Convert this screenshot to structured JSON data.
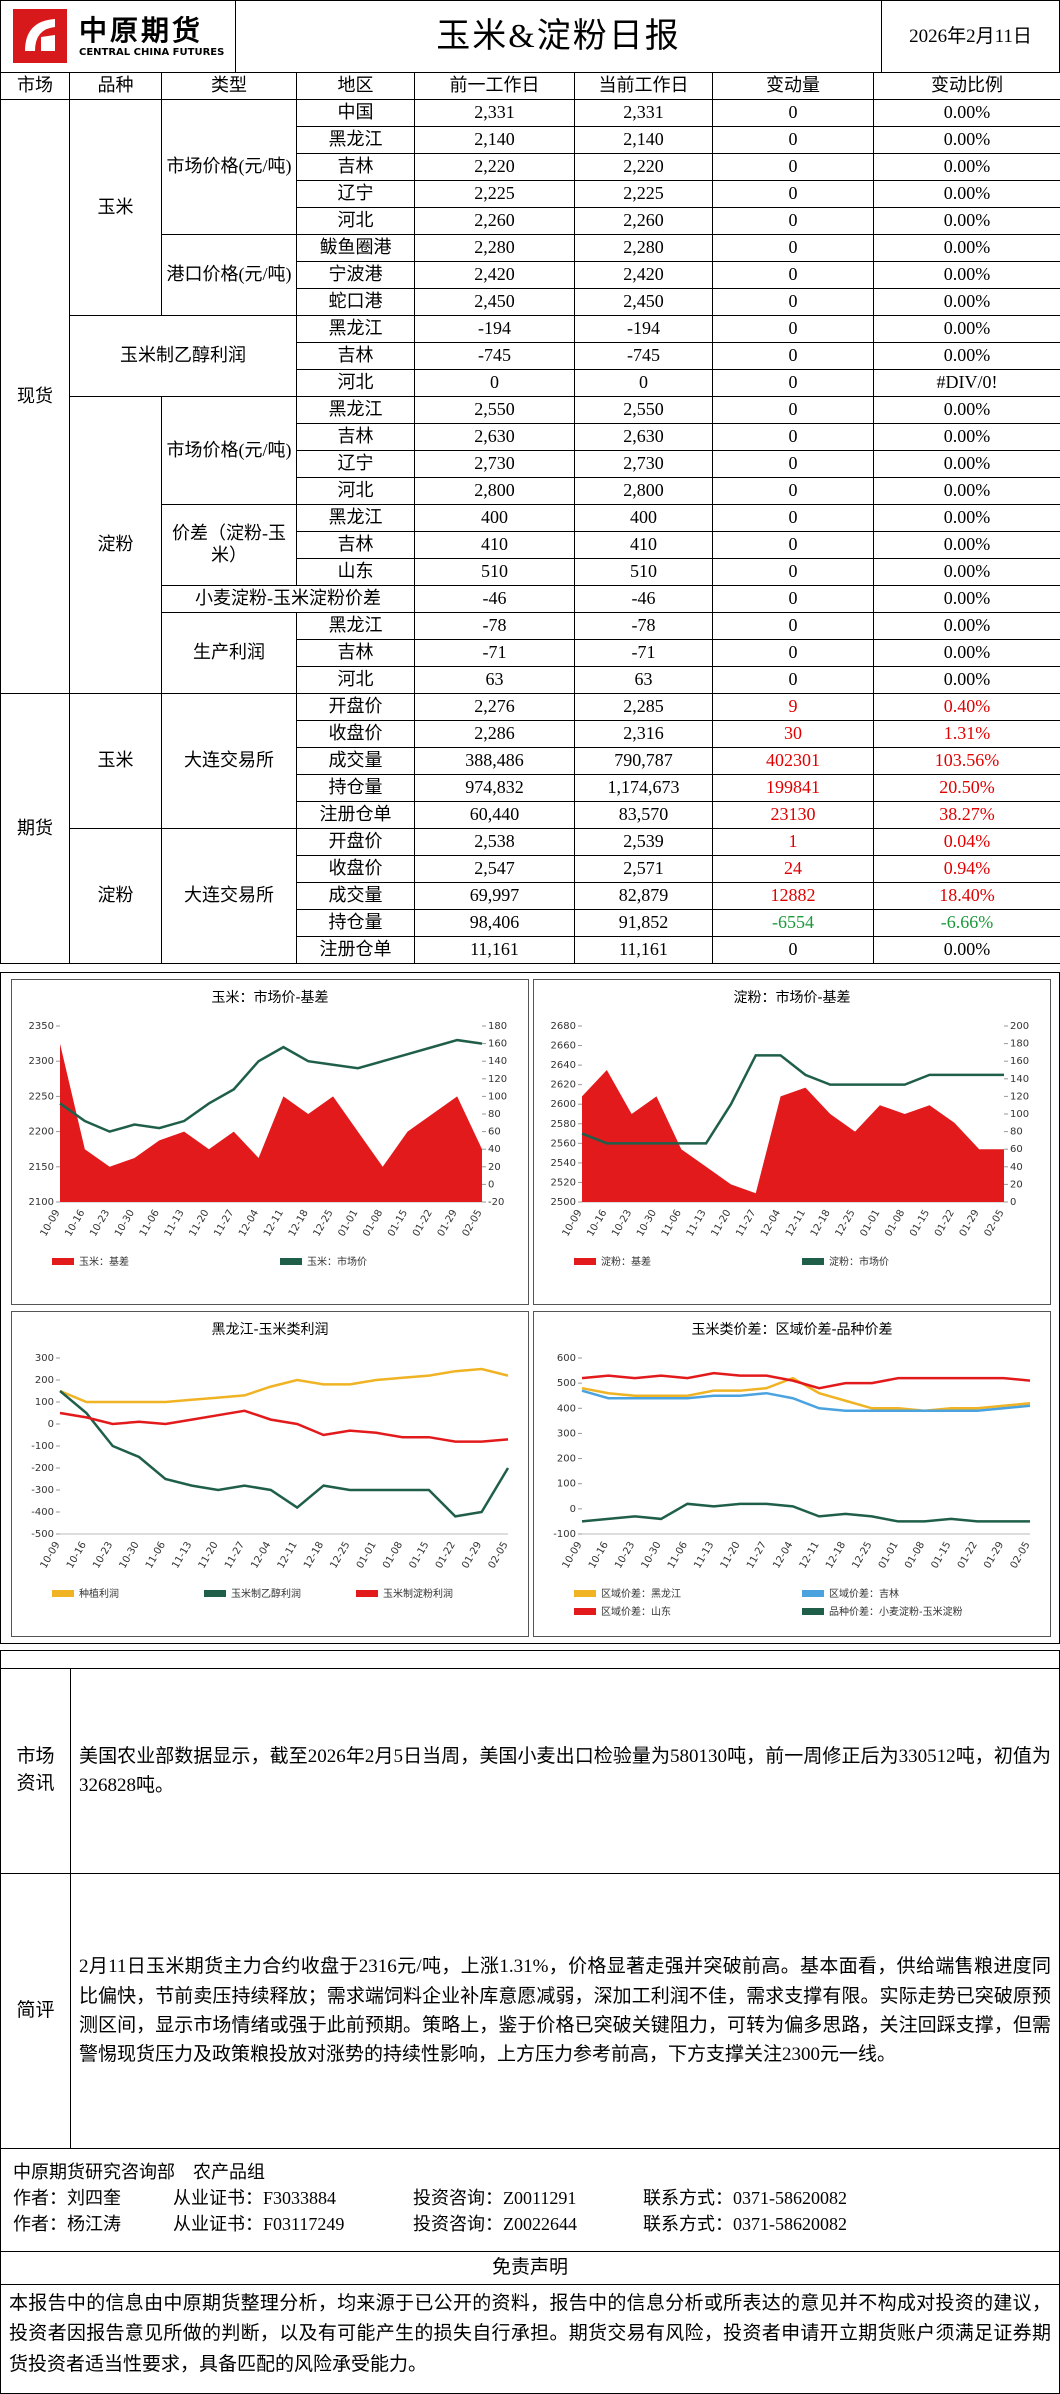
{
  "header": {
    "logo_cn": "中原期货",
    "logo_en": "CENTRAL CHINA FUTURES",
    "title": "玉米&淀粉日报",
    "date": "2026年2月11日"
  },
  "table": {
    "columns": [
      "市场",
      "品种",
      "类型",
      "地区",
      "前一工作日",
      "当前工作日",
      "变动量",
      "变动比例"
    ],
    "markets": [
      {
        "label": "现货",
        "varieties": [
          {
            "label": "玉米",
            "types": [
              {
                "label": "市场价格(元/吨)",
                "rows": [
                  {
                    "region": "中国",
                    "prev": "2,331",
                    "curr": "2,331",
                    "change": "0",
                    "pct": "0.00%"
                  },
                  {
                    "region": "黑龙江",
                    "prev": "2,140",
                    "curr": "2,140",
                    "change": "0",
                    "pct": "0.00%"
                  },
                  {
                    "region": "吉林",
                    "prev": "2,220",
                    "curr": "2,220",
                    "change": "0",
                    "pct": "0.00%"
                  },
                  {
                    "region": "辽宁",
                    "prev": "2,225",
                    "curr": "2,225",
                    "change": "0",
                    "pct": "0.00%"
                  },
                  {
                    "region": "河北",
                    "prev": "2,260",
                    "curr": "2,260",
                    "change": "0",
                    "pct": "0.00%"
                  }
                ]
              },
              {
                "label": "港口价格(元/吨)",
                "rows": [
                  {
                    "region": "鲅鱼圈港",
                    "prev": "2,280",
                    "curr": "2,280",
                    "change": "0",
                    "pct": "0.00%"
                  },
                  {
                    "region": "宁波港",
                    "prev": "2,420",
                    "curr": "2,420",
                    "change": "0",
                    "pct": "0.00%"
                  },
                  {
                    "region": "蛇口港",
                    "prev": "2,450",
                    "curr": "2,450",
                    "change": "0",
                    "pct": "0.00%"
                  }
                ]
              }
            ]
          },
          {
            "label": "玉米制乙醇利润",
            "types": [
              {
                "label": null,
                "rows": [
                  {
                    "region": "黑龙江",
                    "prev": "-194",
                    "curr": "-194",
                    "change": "0",
                    "pct": "0.00%"
                  },
                  {
                    "region": "吉林",
                    "prev": "-745",
                    "curr": "-745",
                    "change": "0",
                    "pct": "0.00%"
                  },
                  {
                    "region": "河北",
                    "prev": "0",
                    "curr": "0",
                    "change": "0",
                    "pct": "#DIV/0!"
                  }
                ]
              }
            ]
          },
          {
            "label": "淀粉",
            "types": [
              {
                "label": "市场价格(元/吨)",
                "rows": [
                  {
                    "region": "黑龙江",
                    "prev": "2,550",
                    "curr": "2,550",
                    "change": "0",
                    "pct": "0.00%"
                  },
                  {
                    "region": "吉林",
                    "prev": "2,630",
                    "curr": "2,630",
                    "change": "0",
                    "pct": "0.00%"
                  },
                  {
                    "region": "辽宁",
                    "prev": "2,730",
                    "curr": "2,730",
                    "change": "0",
                    "pct": "0.00%"
                  },
                  {
                    "region": "河北",
                    "prev": "2,800",
                    "curr": "2,800",
                    "change": "0",
                    "pct": "0.00%"
                  }
                ]
              },
              {
                "label": "价差（淀粉-玉米）",
                "rows": [
                  {
                    "region": "黑龙江",
                    "prev": "400",
                    "curr": "400",
                    "change": "0",
                    "pct": "0.00%"
                  },
                  {
                    "region": "吉林",
                    "prev": "410",
                    "curr": "410",
                    "change": "0",
                    "pct": "0.00%"
                  },
                  {
                    "region": "山东",
                    "prev": "510",
                    "curr": "510",
                    "change": "0",
                    "pct": "0.00%"
                  }
                ]
              },
              {
                "label": "小麦淀粉-玉米淀粉价差",
                "rows": [
                  {
                    "region": null,
                    "prev": "-46",
                    "curr": "-46",
                    "change": "0",
                    "pct": "0.00%"
                  }
                ]
              },
              {
                "label": "生产利润",
                "rows": [
                  {
                    "region": "黑龙江",
                    "prev": "-78",
                    "curr": "-78",
                    "change": "0",
                    "pct": "0.00%"
                  },
                  {
                    "region": "吉林",
                    "prev": "-71",
                    "curr": "-71",
                    "change": "0",
                    "pct": "0.00%"
                  },
                  {
                    "region": "河北",
                    "prev": "63",
                    "curr": "63",
                    "change": "0",
                    "pct": "0.00%"
                  }
                ]
              }
            ]
          }
        ]
      },
      {
        "label": "期货",
        "varieties": [
          {
            "label": "玉米",
            "types": [
              {
                "label": "大连交易所",
                "rows": [
                  {
                    "region": "开盘价",
                    "prev": "2,276",
                    "curr": "2,285",
                    "change": "9",
                    "pct": "0.40%"
                  },
                  {
                    "region": "收盘价",
                    "prev": "2,286",
                    "curr": "2,316",
                    "change": "30",
                    "pct": "1.31%"
                  },
                  {
                    "region": "成交量",
                    "prev": "388,486",
                    "curr": "790,787",
                    "change": "402301",
                    "pct": "103.56%"
                  },
                  {
                    "region": "持仓量",
                    "prev": "974,832",
                    "curr": "1,174,673",
                    "change": "199841",
                    "pct": "20.50%"
                  },
                  {
                    "region": "注册仓单",
                    "prev": "60,440",
                    "curr": "83,570",
                    "change": "23130",
                    "pct": "38.27%"
                  }
                ]
              }
            ]
          },
          {
            "label": "淀粉",
            "types": [
              {
                "label": "大连交易所",
                "rows": [
                  {
                    "region": "开盘价",
                    "prev": "2,538",
                    "curr": "2,539",
                    "change": "1",
                    "pct": "0.04%"
                  },
                  {
                    "region": "收盘价",
                    "prev": "2,547",
                    "curr": "2,571",
                    "change": "24",
                    "pct": "0.94%"
                  },
                  {
                    "region": "成交量",
                    "prev": "69,997",
                    "curr": "82,879",
                    "change": "12882",
                    "pct": "18.40%"
                  },
                  {
                    "region": "持仓量",
                    "prev": "98,406",
                    "curr": "91,852",
                    "change": "-6554",
                    "pct": "-6.66%"
                  },
                  {
                    "region": "注册仓单",
                    "prev": "11,161",
                    "curr": "11,161",
                    "change": "0",
                    "pct": "0.00%"
                  }
                ]
              }
            ]
          }
        ]
      }
    ]
  },
  "chart_data": [
    {
      "type": "line",
      "title": "玉米：市场价-基差",
      "x": [
        "10-09",
        "10-16",
        "10-23",
        "10-30",
        "11-06",
        "11-13",
        "11-20",
        "11-27",
        "12-04",
        "12-11",
        "12-18",
        "12-25",
        "01-01",
        "01-08",
        "01-15",
        "01-22",
        "01-29",
        "02-05"
      ],
      "ylim": [
        2100,
        2350
      ],
      "yticks": [
        2100,
        2150,
        2200,
        2250,
        2300,
        2350
      ],
      "y2lim": [
        -20,
        180
      ],
      "y2ticks": [
        -20,
        0,
        20,
        40,
        60,
        80,
        100,
        120,
        140,
        160,
        180
      ],
      "series": [
        {
          "name": "玉米：基差",
          "color": "#e31a1c",
          "type": "area",
          "axis": "y2",
          "values": [
            160,
            40,
            20,
            30,
            50,
            60,
            40,
            60,
            30,
            100,
            80,
            100,
            60,
            20,
            60,
            80,
            100,
            40
          ]
        },
        {
          "name": "玉米：市场价",
          "color": "#1f5f4a",
          "type": "line",
          "axis": "y",
          "values": [
            2240,
            2215,
            2200,
            2210,
            2205,
            2215,
            2240,
            2260,
            2300,
            2320,
            2300,
            2295,
            2290,
            2300,
            2310,
            2320,
            2330,
            2325
          ]
        }
      ],
      "legend": "bottom"
    },
    {
      "type": "line",
      "title": "淀粉：市场价-基差",
      "x": [
        "10-09",
        "10-16",
        "10-23",
        "10-30",
        "11-06",
        "11-13",
        "11-20",
        "11-27",
        "12-04",
        "12-11",
        "12-18",
        "12-25",
        "01-01",
        "01-08",
        "01-15",
        "01-22",
        "01-29",
        "02-05"
      ],
      "ylim": [
        2500,
        2680
      ],
      "yticks": [
        2500,
        2520,
        2540,
        2560,
        2580,
        2600,
        2620,
        2640,
        2660,
        2680
      ],
      "y2lim": [
        0,
        200
      ],
      "y2ticks": [
        0,
        20,
        40,
        60,
        80,
        100,
        120,
        140,
        160,
        180,
        200
      ],
      "series": [
        {
          "name": "淀粉：基差",
          "color": "#e31a1c",
          "type": "area",
          "axis": "y2",
          "values": [
            120,
            150,
            100,
            120,
            60,
            40,
            20,
            10,
            120,
            130,
            100,
            80,
            110,
            100,
            110,
            90,
            60,
            60
          ]
        },
        {
          "name": "淀粉：市场价",
          "color": "#1f5f4a",
          "type": "line",
          "axis": "y",
          "values": [
            2570,
            2560,
            2560,
            2560,
            2560,
            2560,
            2600,
            2650,
            2650,
            2630,
            2620,
            2620,
            2620,
            2620,
            2630,
            2630,
            2630,
            2630
          ]
        }
      ],
      "legend": "bottom"
    },
    {
      "type": "line",
      "title": "黑龙江-玉米类利润",
      "x": [
        "10-09",
        "10-16",
        "10-23",
        "10-30",
        "11-06",
        "11-13",
        "11-20",
        "11-27",
        "12-04",
        "12-11",
        "12-18",
        "12-25",
        "01-01",
        "01-08",
        "01-15",
        "01-22",
        "01-29",
        "02-05"
      ],
      "ylim": [
        -500,
        300
      ],
      "yticks": [
        -500,
        -400,
        -300,
        -200,
        -100,
        0,
        100,
        200,
        300
      ],
      "series": [
        {
          "name": "种植利润",
          "color": "#f0b323",
          "type": "line",
          "axis": "y",
          "values": [
            150,
            100,
            100,
            100,
            100,
            110,
            120,
            130,
            170,
            200,
            180,
            180,
            200,
            210,
            220,
            240,
            250,
            220
          ]
        },
        {
          "name": "玉米制乙醇利润",
          "color": "#1f5f4a",
          "type": "line",
          "axis": "y",
          "values": [
            150,
            50,
            -100,
            -150,
            -250,
            -280,
            -300,
            -280,
            -300,
            -380,
            -280,
            -300,
            -300,
            -300,
            -300,
            -420,
            -400,
            -200
          ]
        },
        {
          "name": "玉米制淀粉利润",
          "color": "#e31a1c",
          "type": "line",
          "axis": "y",
          "values": [
            50,
            30,
            0,
            10,
            0,
            20,
            40,
            60,
            20,
            0,
            -50,
            -30,
            -40,
            -60,
            -60,
            -80,
            -80,
            -70
          ]
        }
      ],
      "legend": "bottom"
    },
    {
      "type": "line",
      "title": "玉米类价差：区域价差-品种价差",
      "x": [
        "10-09",
        "10-16",
        "10-23",
        "10-30",
        "11-06",
        "11-13",
        "11-20",
        "11-27",
        "12-04",
        "12-11",
        "12-18",
        "12-25",
        "01-01",
        "01-08",
        "01-15",
        "01-22",
        "01-29",
        "02-05"
      ],
      "ylim": [
        -100,
        600
      ],
      "yticks": [
        -100,
        0,
        100,
        200,
        300,
        400,
        500,
        600
      ],
      "series": [
        {
          "name": "区域价差：黑龙江",
          "color": "#f0b323",
          "type": "line",
          "axis": "y",
          "values": [
            480,
            460,
            450,
            450,
            450,
            470,
            470,
            480,
            520,
            460,
            430,
            400,
            400,
            390,
            400,
            400,
            410,
            420
          ]
        },
        {
          "name": "区域价差：吉林",
          "color": "#4aa3df",
          "type": "line",
          "axis": "y",
          "values": [
            470,
            440,
            440,
            440,
            440,
            450,
            450,
            460,
            440,
            400,
            390,
            390,
            390,
            390,
            390,
            390,
            400,
            410
          ]
        },
        {
          "name": "区域价差：山东",
          "color": "#e31a1c",
          "type": "line",
          "axis": "y",
          "values": [
            520,
            530,
            520,
            530,
            520,
            540,
            530,
            530,
            510,
            480,
            500,
            500,
            520,
            520,
            520,
            520,
            520,
            510
          ]
        },
        {
          "name": "品种价差：小麦淀粉-玉米淀粉",
          "color": "#1f5f4a",
          "type": "line",
          "axis": "y",
          "values": [
            -50,
            -40,
            -30,
            -40,
            20,
            10,
            20,
            20,
            10,
            -30,
            -20,
            -30,
            -50,
            -50,
            -40,
            -50,
            -50,
            -50
          ]
        }
      ],
      "legend": "bottom"
    }
  ],
  "news": {
    "label": "市场资讯",
    "text": "美国农业部数据显示，截至2026年2月5日当周，美国小麦出口检验量为580130吨，前一周修正后为330512吨，初值为326828吨。"
  },
  "comment": {
    "label": "简评",
    "text": "2月11日玉米期货主力合约收盘于2316元/吨，上涨1.31%，价格显著走强并突破前高。基本面看，供给端售粮进度同比偏快，节前卖压持续释放；需求端饲料企业补库意愿减弱，深加工利润不佳，需求支撑有限。实际走势已突破原预测区间，显示市场情绪或强于此前预期。策略上，鉴于价格已突破关键阻力，可转为偏多思路，关注回踩支撑，但需警惕现货压力及政策粮投放对涨势的持续性影响，上方压力参考前高，下方支撑关注2300元一线。"
  },
  "authors": {
    "department": "中原期货研究咨询部　农产品组",
    "rows": [
      [
        "作者：刘四奎",
        "从业证书：F3033884",
        "投资咨询：Z0011291",
        "联系方式：0371-58620082"
      ],
      [
        "作者：杨江涛",
        "从业证书：F03117249",
        "投资咨询：Z0022644",
        "联系方式：0371-58620082"
      ]
    ]
  },
  "disclaimer": {
    "title": "免责声明",
    "text": "本报告中的信息由中原期货整理分析，均来源于已公开的资料，报告中的信息分析或所表达的意见并不构成对投资的建议，投资者因报告意见所做的判断，以及有可能产生的损失自行承担。期货交易有风险，投资者申请开立期货账户须满足证券期货投资者适当性要求，具备匹配的风险承受能力。"
  }
}
